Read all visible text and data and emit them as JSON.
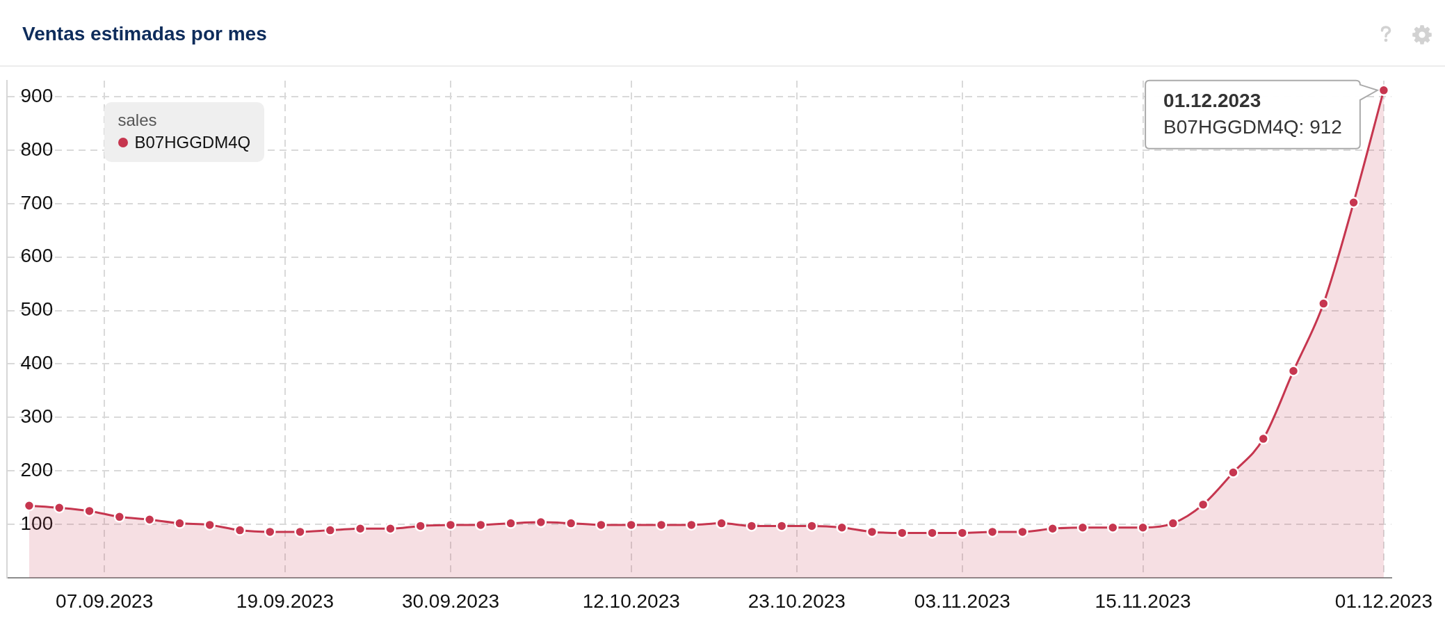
{
  "chart_data": {
    "type": "area",
    "title": "Ventas estimadas por mes",
    "legend_title": "sales",
    "legend": "top left",
    "grid": true,
    "marker": "circle",
    "x": [
      "2023-09-02",
      "2023-09-04",
      "2023-09-06",
      "2023-09-08",
      "2023-09-10",
      "2023-09-12",
      "2023-09-14",
      "2023-09-16",
      "2023-09-18",
      "2023-09-20",
      "2023-09-22",
      "2023-09-24",
      "2023-09-26",
      "2023-09-28",
      "2023-09-30",
      "2023-10-02",
      "2023-10-04",
      "2023-10-06",
      "2023-10-08",
      "2023-10-10",
      "2023-10-12",
      "2023-10-14",
      "2023-10-16",
      "2023-10-18",
      "2023-10-20",
      "2023-10-22",
      "2023-10-24",
      "2023-10-26",
      "2023-10-28",
      "2023-10-30",
      "2023-11-01",
      "2023-11-03",
      "2023-11-05",
      "2023-11-07",
      "2023-11-09",
      "2023-11-11",
      "2023-11-13",
      "2023-11-15",
      "2023-11-17",
      "2023-11-19",
      "2023-11-21",
      "2023-11-23",
      "2023-11-25",
      "2023-11-27",
      "2023-11-29",
      "2023-12-01"
    ],
    "series": [
      {
        "name": "B07HGGDM4Q",
        "color": "#c6364f",
        "values": [
          135,
          131,
          125,
          114,
          109,
          102,
          99,
          89,
          86,
          86,
          89,
          92,
          92,
          97,
          99,
          99,
          102,
          104,
          102,
          99,
          99,
          99,
          99,
          102,
          97,
          97,
          97,
          94,
          86,
          84,
          84,
          84,
          86,
          86,
          92,
          94,
          94,
          94,
          102,
          137,
          197,
          260,
          387,
          513,
          702,
          912
        ]
      }
    ],
    "xlim": [
      "2023-08-31T12:00",
      "2023-12-01T12:00"
    ],
    "xticks": [
      {
        "value": "2023-09-07",
        "label": "07.09.2023"
      },
      {
        "value": "2023-09-19",
        "label": "19.09.2023"
      },
      {
        "value": "2023-09-30",
        "label": "30.09.2023"
      },
      {
        "value": "2023-10-12",
        "label": "12.10.2023"
      },
      {
        "value": "2023-10-23",
        "label": "23.10.2023"
      },
      {
        "value": "2023-11-03",
        "label": "03.11.2023"
      },
      {
        "value": "2023-11-15",
        "label": "15.11.2023"
      },
      {
        "value": "2023-12-01",
        "label": "01.12.2023"
      }
    ],
    "ylim": [
      0,
      930
    ],
    "yticks": [
      100,
      200,
      300,
      400,
      500,
      600,
      700,
      800,
      900
    ],
    "annotations": [
      "01.12.2023",
      {
        "text": "B07HGGDM4Q: 912",
        "x": "2023-12-01",
        "y": 912
      }
    ]
  }
}
